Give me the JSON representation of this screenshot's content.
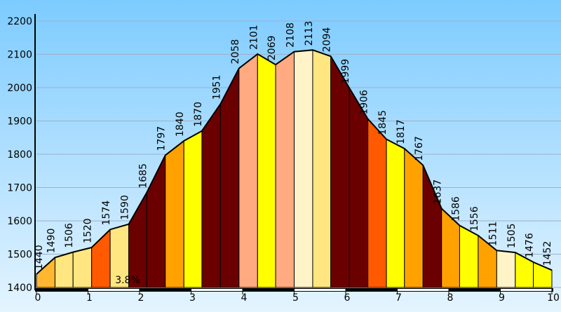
{
  "chart_data": {
    "type": "elevation-profile",
    "x": [
      0,
      0.36,
      0.71,
      1.07,
      1.43,
      1.79,
      2.14,
      2.5,
      2.86,
      3.21,
      3.57,
      3.93,
      4.29,
      4.64,
      5,
      5.36,
      5.71,
      6.07,
      6.43,
      6.79,
      7.14,
      7.5,
      7.86,
      8.21,
      8.57,
      8.93,
      9.29,
      9.64,
      10
    ],
    "values": [
      1440,
      1490,
      1506,
      1520,
      1574,
      1590,
      1685,
      1797,
      1840,
      1870,
      1951,
      2058,
      2101,
      2069,
      2108,
      2113,
      2094,
      1999,
      1906,
      1845,
      1817,
      1767,
      1637,
      1586,
      1556,
      1511,
      1505,
      1476,
      1452
    ],
    "segment_colors": [
      "#ffb732",
      "#ffe680",
      "#ffe680",
      "#ff5a00",
      "#ffe680",
      "#6b0000",
      "#6b0000",
      "#ffa200",
      "#ffff00",
      "#6b0000",
      "#6b0000",
      "#ffaa80",
      "#ffff00",
      "#ffaa80",
      "#fff4c8",
      "#ffe680",
      "#6b0000",
      "#6b0000",
      "#ff5a00",
      "#ffff00",
      "#ffa200",
      "#6b0000",
      "#ffa200",
      "#ffff00",
      "#ffa200",
      "#fff4c8",
      "#ffff00",
      "#ffff00"
    ],
    "annotation": "3.8%",
    "xlim": [
      0,
      10
    ],
    "xticks": [
      0,
      1,
      2,
      3,
      4,
      5,
      6,
      7,
      8,
      9,
      10
    ],
    "ylim": [
      1400,
      2200
    ],
    "yticks": [
      1400,
      1500,
      1600,
      1700,
      1800,
      1900,
      2000,
      2100,
      2200
    ],
    "grid": true
  }
}
